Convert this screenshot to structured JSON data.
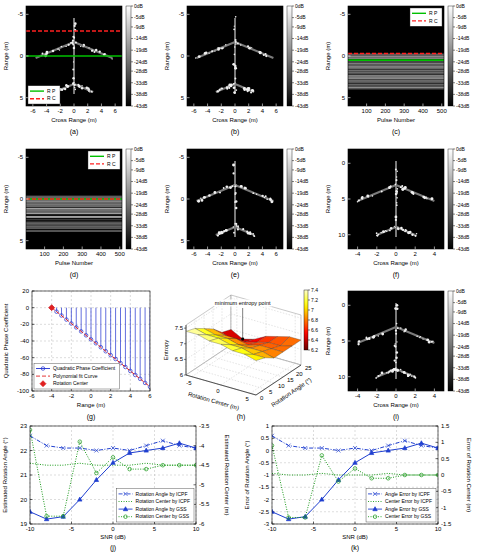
{
  "chart_data": [
    {
      "panel": "(a)",
      "type": "image",
      "xlabel": "Cross Range (m)",
      "ylabel": "Range (m)",
      "xlim": [
        -7,
        7
      ],
      "ylim": [
        6,
        -6
      ],
      "xticks": [
        -6,
        -4,
        -2,
        0,
        2,
        4,
        6
      ],
      "yticks": [
        -5,
        0,
        5
      ],
      "colorbar_range": [
        -43,
        0
      ],
      "colorbar_ticks": [
        {
          "value": 0,
          "label": "0dB"
        },
        {
          "value": -5,
          "label": "-5dB"
        },
        {
          "value": -9,
          "label": "-9dB"
        },
        {
          "value": -14,
          "label": "-14dB"
        },
        {
          "value": -19,
          "label": "-19dB"
        },
        {
          "value": -24,
          "label": "-24dB"
        },
        {
          "value": -28,
          "label": "-28dB"
        },
        {
          "value": -33,
          "label": "-33dB"
        },
        {
          "value": -38,
          "label": "-38dB"
        },
        {
          "value": -43,
          "label": "-43dB"
        }
      ],
      "series": [
        {
          "name": "R P",
          "color": "#00c000",
          "line_style": "solid",
          "values": [
            0
          ]
        },
        {
          "name": "R C",
          "color": "#ff2020",
          "line_style": "dashed",
          "values": [
            -3
          ]
        }
      ],
      "legend": "lower left"
    },
    {
      "panel": "(b)",
      "type": "image",
      "xlabel": "Cross Range (m)",
      "ylabel": "Range (m)",
      "xlim": [
        -7,
        7
      ],
      "ylim": [
        6,
        -6
      ],
      "xticks": [
        -6,
        -4,
        -2,
        0,
        2,
        4,
        6
      ],
      "yticks": [
        -5,
        0,
        5
      ],
      "colorbar_range": [
        -43,
        0
      ],
      "colorbar_ticks": [
        {
          "value": 0,
          "label": "0dB"
        },
        {
          "value": -5,
          "label": "-5dB"
        },
        {
          "value": -9,
          "label": "-9dB"
        },
        {
          "value": -14,
          "label": "-14dB"
        },
        {
          "value": -19,
          "label": "-19dB"
        },
        {
          "value": -24,
          "label": "-24dB"
        },
        {
          "value": -28,
          "label": "-28dB"
        },
        {
          "value": -33,
          "label": "-33dB"
        },
        {
          "value": -38,
          "label": "-38dB"
        },
        {
          "value": -43,
          "label": "-43dB"
        }
      ]
    },
    {
      "panel": "(c)",
      "type": "profiles",
      "xlabel": "Pulse Number",
      "ylabel": "Range (m)",
      "xlim": [
        1,
        512
      ],
      "ylim": [
        6,
        -6
      ],
      "xticks": [
        100,
        200,
        300,
        400,
        500
      ],
      "yticks": [
        -5,
        0,
        5
      ],
      "colorbar_range": [
        -43,
        0
      ],
      "colorbar_ticks": [
        {
          "value": 0,
          "label": "0dB"
        },
        {
          "value": -5,
          "label": "-5dB"
        },
        {
          "value": -9,
          "label": "-9dB"
        },
        {
          "value": -14,
          "label": "-14dB"
        },
        {
          "value": -19,
          "label": "-19dB"
        },
        {
          "value": -24,
          "label": "-24dB"
        },
        {
          "value": -28,
          "label": "-28dB"
        },
        {
          "value": -33,
          "label": "-33dB"
        },
        {
          "value": -38,
          "label": "-38dB"
        },
        {
          "value": -43,
          "label": "-43dB"
        }
      ],
      "series": [
        {
          "name": "R P",
          "color": "#00c000",
          "line_style": "solid",
          "values": [
            0.5
          ]
        },
        {
          "name": "R C",
          "color": "#ff2020",
          "line_style": "dashed",
          "values": [
            -0.3
          ]
        }
      ],
      "legend": "upper right"
    },
    {
      "panel": "(d)",
      "type": "profiles",
      "xlabel": "Pulse Number",
      "ylabel": "Range (m)",
      "xlim": [
        1,
        512
      ],
      "ylim": [
        6,
        -6
      ],
      "xticks": [
        100,
        200,
        300,
        400,
        500
      ],
      "yticks": [
        -5,
        0,
        5
      ],
      "colorbar_range": [
        -43,
        0
      ],
      "colorbar_ticks": [
        {
          "value": 0,
          "label": "0dB"
        },
        {
          "value": -5,
          "label": "-5dB"
        },
        {
          "value": -9,
          "label": "-9dB"
        },
        {
          "value": -14,
          "label": "-14dB"
        },
        {
          "value": -19,
          "label": "-19dB"
        },
        {
          "value": -24,
          "label": "-24dB"
        },
        {
          "value": -28,
          "label": "-28dB"
        },
        {
          "value": -33,
          "label": "-33dB"
        },
        {
          "value": -38,
          "label": "-38dB"
        },
        {
          "value": -43,
          "label": "-43dB"
        }
      ],
      "series": [
        {
          "name": "R P",
          "color": "#00c000",
          "line_style": "solid",
          "values": [
            0
          ]
        },
        {
          "name": "R C",
          "color": "#ff2020",
          "line_style": "dashed",
          "values": [
            0
          ]
        }
      ],
      "legend": "upper right"
    },
    {
      "panel": "(e)",
      "type": "image",
      "xlabel": "Cross Range (m)",
      "ylabel": "Range (m)",
      "xlim": [
        -7,
        7
      ],
      "ylim": [
        6,
        -6
      ],
      "xticks": [
        -6,
        -4,
        -2,
        0,
        2,
        4,
        6
      ],
      "yticks": [
        -5,
        0,
        5
      ],
      "colorbar_range": [
        -43,
        0
      ],
      "colorbar_ticks": [
        {
          "value": 0,
          "label": "0dB"
        },
        {
          "value": -5,
          "label": "-5dB"
        },
        {
          "value": -9,
          "label": "-9dB"
        },
        {
          "value": -14,
          "label": "-14dB"
        },
        {
          "value": -19,
          "label": "-19dB"
        },
        {
          "value": -24,
          "label": "-24dB"
        },
        {
          "value": -28,
          "label": "-28dB"
        },
        {
          "value": -33,
          "label": "-33dB"
        },
        {
          "value": -38,
          "label": "-38dB"
        },
        {
          "value": -43,
          "label": "-43dB"
        }
      ]
    },
    {
      "panel": "(f)",
      "type": "image",
      "xlabel": "Cross Range (m)",
      "ylabel": "Range (m)",
      "xlim": [
        -5,
        5
      ],
      "ylim": [
        12,
        -2
      ],
      "xticks": [
        -4,
        -2,
        0,
        2,
        4
      ],
      "yticks": [
        0,
        5,
        10
      ],
      "colorbar_range": [
        -43,
        0
      ],
      "colorbar_ticks": [
        {
          "value": 0,
          "label": "0dB"
        },
        {
          "value": -5,
          "label": "-5dB"
        },
        {
          "value": -9,
          "label": "-9dB"
        },
        {
          "value": -14,
          "label": "-14dB"
        },
        {
          "value": -19,
          "label": "-19dB"
        },
        {
          "value": -24,
          "label": "-24dB"
        },
        {
          "value": -28,
          "label": "-28dB"
        },
        {
          "value": -33,
          "label": "-33dB"
        },
        {
          "value": -38,
          "label": "-38dB"
        },
        {
          "value": -43,
          "label": "-43dB"
        }
      ]
    },
    {
      "panel": "(g)",
      "type": "stem",
      "xlabel": "Range (m)",
      "ylabel": "Quadratic Phase Coefficient",
      "xlim": [
        -6,
        6
      ],
      "ylim": [
        -100,
        20
      ],
      "xticks": [
        -6,
        -4,
        -2,
        0,
        2,
        4,
        6
      ],
      "yticks": [
        -100,
        -80,
        -60,
        -40,
        -20,
        0,
        20
      ],
      "grid": true,
      "legend": "lower left",
      "series": [
        {
          "name": "Quadratic Phase Coefficient",
          "type": "stem",
          "color": "#2030d0",
          "marker": "circle",
          "line_style": "solid",
          "x": [
            -4,
            -3.5,
            -3,
            -2.5,
            -2,
            -1.5,
            -1,
            -0.5,
            0,
            0.5,
            1,
            1.5,
            2,
            2.5,
            3,
            3.5,
            4,
            4.5,
            5,
            5.5,
            6
          ],
          "values": [
            0,
            -4.8,
            -9.4,
            -14.3,
            -19,
            -23.7,
            -28.5,
            -33.2,
            -38.1,
            -42.7,
            -47.5,
            -52.3,
            -57,
            -61.6,
            -66.5,
            -71.2,
            -76,
            -80.8,
            -85.4,
            -90.3,
            -95
          ]
        },
        {
          "name": "Polynomial fit Curve",
          "type": "line",
          "color": "#e02020",
          "marker": "none",
          "line_style": "dashed",
          "x": [
            -4,
            -2,
            0,
            2,
            4,
            6
          ],
          "values": [
            0,
            -19,
            -38,
            -57,
            -76,
            -95
          ]
        },
        {
          "name": "Rotation Center",
          "type": "scatter",
          "color": "#e02020",
          "marker": "diamond",
          "line_style": "none",
          "x": [
            -4
          ],
          "values": [
            0
          ]
        }
      ]
    },
    {
      "panel": "(h)",
      "type": "surface",
      "xlabel": "Rotation Center (m)",
      "ylabel": "Rotation Angle (°)",
      "zlabel": "Entropy",
      "xlim": [
        -6,
        6
      ],
      "ylim": [
        0,
        25
      ],
      "zlim": [
        6,
        7.6
      ],
      "xticks": [
        -5,
        0,
        5
      ],
      "yticks": [
        0,
        5,
        10,
        15,
        20,
        25
      ],
      "zticks": [
        6,
        6.5,
        7,
        7.5
      ],
      "x": [
        -6,
        -4,
        -2,
        0,
        2,
        4,
        6
      ],
      "y": [
        0,
        5,
        10,
        15,
        20,
        25
      ],
      "z": [
        [
          7.4,
          7.4,
          7.3,
          7.3,
          7.2,
          7.2,
          7.1
        ],
        [
          7.3,
          7.2,
          7.2,
          7.1,
          7.1,
          7.0,
          7.0
        ],
        [
          7.1,
          7.0,
          7.0,
          6.9,
          6.9,
          6.9,
          6.8
        ],
        [
          6.9,
          6.8,
          6.8,
          6.7,
          6.8,
          6.8,
          6.8
        ],
        [
          6.6,
          6.4,
          6.5,
          6.6,
          6.7,
          6.7,
          6.8
        ],
        [
          6.5,
          6.3,
          6.4,
          6.6,
          6.7,
          6.8,
          6.8
        ]
      ],
      "colorbar_range": [
        6.2,
        7.4
      ],
      "colorbar_ticks": [
        6.2,
        6.4,
        6.6,
        6.8,
        7,
        7.2,
        7.4
      ],
      "annotation": "minimum entropy point"
    },
    {
      "panel": "(i)",
      "type": "image",
      "xlabel": "Cross Range (m)",
      "ylabel": "Range (m)",
      "xlim": [
        -5,
        5
      ],
      "ylim": [
        12,
        -2
      ],
      "xticks": [
        -4,
        -2,
        0,
        2,
        4
      ],
      "yticks": [
        0,
        5,
        10
      ],
      "colorbar_range": [
        -43,
        0
      ],
      "colorbar_ticks": [
        {
          "value": 0,
          "label": "0dB"
        },
        {
          "value": -5,
          "label": "-5dB"
        },
        {
          "value": -9,
          "label": "-9dB"
        },
        {
          "value": -14,
          "label": "-14dB"
        },
        {
          "value": -19,
          "label": "-19dB"
        },
        {
          "value": -24,
          "label": "-24dB"
        },
        {
          "value": -28,
          "label": "-28dB"
        },
        {
          "value": -33,
          "label": "-33dB"
        },
        {
          "value": -38,
          "label": "-38dB"
        },
        {
          "value": -43,
          "label": "-43dB"
        }
      ]
    },
    {
      "panel": "(j)",
      "type": "line",
      "xlabel": "SNR (dB)",
      "ylabel": "Estimated Rotation Angle (°)",
      "y2label": "Estimated Rotation Center (m)",
      "xlim": [
        -10,
        10
      ],
      "ylim": [
        19,
        23
      ],
      "y2lim": [
        -6,
        -3.5
      ],
      "xticks": [
        -10,
        -5,
        0,
        5,
        10
      ],
      "yticks": [
        19,
        20,
        21,
        22,
        23
      ],
      "y2ticks": [
        -6,
        -5.5,
        -5,
        -4.5,
        -4,
        -3.5
      ],
      "grid": true,
      "legend": "lower right",
      "x": [
        -10,
        -8,
        -6,
        -4,
        -2,
        0,
        2,
        4,
        6,
        8,
        10
      ],
      "series": [
        {
          "name": "Rotation Angle by ICPF",
          "color": "#1f3fd0",
          "marker": "x",
          "line_style": "dashdot",
          "values": [
            22.6,
            22.2,
            22.1,
            22.1,
            22.0,
            22.1,
            22.0,
            22.2,
            22.4,
            22.2,
            22.1
          ]
        },
        {
          "name": "Rotation Center by ICPF",
          "color": "#1a9a1a",
          "marker": "none",
          "line_style": "dotted",
          "axis": "y2",
          "values": [
            -4.45,
            -4.5,
            -4.5,
            -4.45,
            -4.5,
            -4.5,
            -4.5,
            -4.45,
            -4.5,
            -4.5,
            -4.5
          ]
        },
        {
          "name": "Rotation Angle by GSS",
          "color": "#1f3fd0",
          "marker": "triangle",
          "line_style": "solid",
          "values": [
            19.5,
            19.2,
            19.3,
            20.0,
            20.8,
            21.5,
            21.9,
            22.0,
            22.1,
            22.3,
            22.1
          ]
        },
        {
          "name": "Rotation Center by GSS",
          "color": "#1a9a1a",
          "marker": "circle",
          "line_style": "dotted",
          "axis": "y2",
          "values": [
            -3.6,
            -5.8,
            -5.8,
            -3.9,
            -4.7,
            -4.3,
            -4.6,
            -4.6,
            -4.5,
            -4.5,
            -4.5
          ]
        }
      ]
    },
    {
      "panel": "(k)",
      "type": "line",
      "xlabel": "SNR (dB)",
      "ylabel": "Error of Rotation Angle (°)",
      "y2label": "Error of Rotation Center (m)",
      "xlim": [
        -10,
        10
      ],
      "ylim": [
        -3,
        1
      ],
      "y2lim": [
        -1.5,
        1.5
      ],
      "xticks": [
        -10,
        -5,
        0,
        5,
        10
      ],
      "yticks": [
        -3,
        -2.5,
        -2,
        -1.5,
        -1,
        -0.5,
        0,
        0.5,
        1
      ],
      "y2ticks": [
        -1.5,
        -1,
        -0.5,
        0,
        0.5,
        1,
        1.5
      ],
      "grid": true,
      "legend": "lower right",
      "x": [
        -10,
        -8,
        -6,
        -4,
        -2,
        0,
        2,
        4,
        6,
        8,
        10
      ],
      "series": [
        {
          "name": "Angle Error by ICPF",
          "color": "#1f3fd0",
          "marker": "x",
          "line_style": "dashdot",
          "values": [
            0.6,
            0.2,
            0.1,
            0.1,
            0.0,
            0.1,
            0.0,
            0.2,
            0.4,
            0.2,
            0.1
          ]
        },
        {
          "name": "Center Error by ICPF",
          "color": "#1a9a1a",
          "marker": "none",
          "line_style": "dotted",
          "axis": "y2",
          "values": [
            0.05,
            0,
            0,
            0.05,
            0,
            0,
            0,
            0.05,
            0,
            0,
            0
          ]
        },
        {
          "name": "Angle Error by GSS",
          "color": "#1f3fd0",
          "marker": "triangle",
          "line_style": "solid",
          "values": [
            -2.5,
            -2.8,
            -2.7,
            -2.0,
            -1.2,
            -0.5,
            -0.1,
            0.0,
            0.1,
            0.3,
            0.1
          ]
        },
        {
          "name": "Center Error by GSS",
          "color": "#1a9a1a",
          "marker": "circle",
          "line_style": "dotted",
          "axis": "y2",
          "values": [
            0.9,
            -1.3,
            -1.3,
            0.6,
            -0.2,
            0.2,
            -0.1,
            -0.1,
            0,
            0,
            0
          ]
        }
      ]
    }
  ]
}
